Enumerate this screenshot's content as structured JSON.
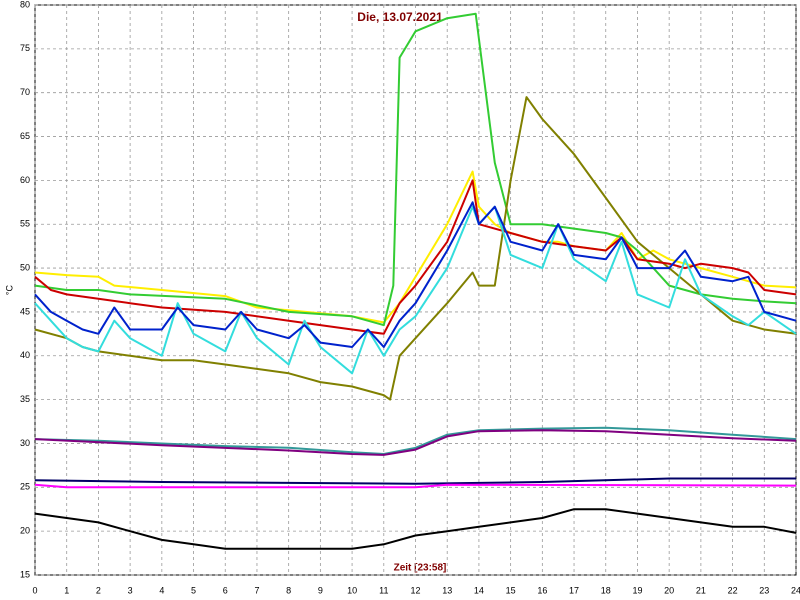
{
  "chart_data": {
    "type": "line",
    "title": "Die, 13.07.2021",
    "x_label": "Zeit [23:58]",
    "y_label": "°C",
    "xlim": [
      0,
      24
    ],
    "xticks": [
      0,
      1,
      2,
      3,
      4,
      5,
      6,
      7,
      8,
      9,
      10,
      11,
      12,
      13,
      14,
      15,
      16,
      17,
      18,
      19,
      20,
      21,
      22,
      23,
      24
    ],
    "ylim": [
      15,
      80
    ],
    "yticks": [
      15,
      20,
      25,
      30,
      35,
      40,
      45,
      50,
      55,
      60,
      65,
      70,
      75,
      80
    ],
    "grid": true,
    "series": [
      {
        "color": "#ffee00",
        "x": [
          0,
          1,
          2,
          2.5,
          4,
          6,
          7,
          8,
          10,
          11,
          11.5,
          12,
          13,
          13.8,
          14,
          14.5,
          15,
          16,
          16.5,
          17,
          18,
          18.5,
          19,
          19.5,
          20,
          21,
          22,
          23,
          24
        ],
        "values": [
          49.5,
          49.2,
          49,
          48,
          47.5,
          46.8,
          45.5,
          45.2,
          44.5,
          43.8,
          46,
          49,
          55,
          61,
          57,
          55,
          54,
          53,
          53,
          52.5,
          52,
          54,
          51,
          52,
          51,
          50,
          49,
          48,
          47.8
        ]
      },
      {
        "color": "#33cc33",
        "x": [
          0,
          1,
          2,
          3,
          6,
          8,
          10,
          11,
          11.3,
          11.5,
          12,
          13,
          13.9,
          14.5,
          15,
          16,
          17,
          18,
          18.5,
          19,
          20,
          21,
          22,
          23,
          24
        ],
        "values": [
          48,
          47.5,
          47.5,
          47,
          46.5,
          45,
          44.5,
          43.5,
          48,
          74,
          77,
          78.5,
          79,
          62,
          55,
          55,
          54.5,
          54,
          53.5,
          52,
          48,
          47,
          46.5,
          46.2,
          46
        ]
      },
      {
        "color": "#808000",
        "x": [
          0,
          1,
          1.5,
          2,
          3,
          4,
          5,
          6,
          7,
          8,
          9,
          10,
          11,
          11.2,
          11.5,
          12,
          13,
          13.8,
          14,
          14.5,
          15,
          15.5,
          16,
          17,
          18,
          19,
          20,
          21,
          22,
          23,
          24
        ],
        "values": [
          43,
          42,
          41,
          40.5,
          40,
          39.5,
          39.5,
          39,
          38.5,
          38,
          37,
          36.5,
          35.5,
          35,
          40,
          42,
          46,
          49.5,
          48,
          48,
          60,
          69.5,
          67,
          63,
          58,
          53,
          50,
          47,
          44,
          43,
          42.5
        ]
      },
      {
        "color": "#cc0000",
        "x": [
          0,
          0.5,
          1,
          2,
          3,
          4,
          6,
          8,
          10,
          11,
          11.5,
          12,
          13,
          13.8,
          14,
          15,
          16,
          17,
          18,
          18.5,
          19,
          20,
          20.5,
          21,
          22,
          22.5,
          23,
          24
        ],
        "values": [
          49,
          47.5,
          47,
          46.5,
          46,
          45.5,
          45,
          44,
          43,
          42.5,
          46,
          48,
          53,
          60,
          55,
          54,
          53,
          52.5,
          52,
          53.5,
          51,
          50.5,
          50,
          50.5,
          50,
          49.5,
          47.5,
          47
        ]
      },
      {
        "color": "#33dddd",
        "x": [
          0,
          1,
          1.5,
          2,
          2.5,
          3,
          4,
          4.5,
          5,
          6,
          6.5,
          7,
          8,
          8.5,
          9,
          10,
          10.5,
          11,
          11.5,
          12,
          13,
          13.8,
          14,
          14.5,
          15,
          16,
          16.5,
          17,
          18,
          18.5,
          19,
          20,
          20.5,
          21,
          22,
          22.5,
          23,
          24
        ],
        "values": [
          46,
          42,
          41,
          40.5,
          44,
          42,
          40,
          46,
          42.5,
          40.5,
          45,
          42,
          39,
          44,
          41,
          38,
          43,
          40,
          43,
          44.5,
          50,
          57,
          55,
          57,
          51.5,
          50,
          55,
          51,
          48.5,
          53,
          47,
          45.5,
          51,
          47,
          44.5,
          43.5,
          45,
          42.5
        ]
      },
      {
        "color": "#0022cc",
        "x": [
          0,
          0.5,
          1,
          1.5,
          2,
          2.5,
          3,
          4,
          4.5,
          5,
          6,
          6.5,
          7,
          8,
          8.5,
          9,
          10,
          10.5,
          11,
          11.5,
          12,
          13,
          13.8,
          14,
          14.5,
          15,
          16,
          16.5,
          17,
          18,
          18.5,
          19,
          20,
          20.5,
          21,
          22,
          22.5,
          23,
          24
        ],
        "values": [
          47,
          45,
          44,
          43,
          42.5,
          45.5,
          43,
          43,
          45.5,
          43.5,
          43,
          45,
          43,
          42,
          43.5,
          41.5,
          41,
          43,
          41,
          44,
          46,
          52,
          57.5,
          55,
          57,
          53,
          52,
          55,
          51.5,
          51,
          53.5,
          50,
          50,
          52,
          49,
          48.5,
          49,
          45,
          44
        ]
      },
      {
        "color": "#339999",
        "x": [
          0,
          2,
          4,
          6,
          8,
          10,
          11,
          12,
          13,
          14,
          16,
          18,
          20,
          22,
          24
        ],
        "values": [
          30.5,
          30.3,
          30,
          29.7,
          29.5,
          29,
          28.8,
          29.5,
          31,
          31.5,
          31.7,
          31.8,
          31.5,
          31,
          30.5
        ]
      },
      {
        "color": "#800080",
        "x": [
          0,
          4,
          8,
          10,
          11,
          12,
          13,
          14,
          16,
          18,
          20,
          22,
          24
        ],
        "values": [
          30.5,
          29.8,
          29.2,
          28.8,
          28.7,
          29.3,
          30.8,
          31.4,
          31.5,
          31.4,
          31,
          30.6,
          30.3
        ]
      },
      {
        "color": "#000066",
        "x": [
          0,
          4,
          8,
          12,
          16,
          20,
          24
        ],
        "values": [
          25.8,
          25.6,
          25.5,
          25.4,
          25.6,
          26,
          26
        ]
      },
      {
        "color": "#ff00ff",
        "x": [
          0,
          1,
          12,
          13,
          24
        ],
        "values": [
          25.3,
          25,
          25,
          25.3,
          25.2
        ]
      },
      {
        "color": "#000000",
        "x": [
          0,
          1,
          2,
          3,
          4,
          5,
          6,
          8,
          10,
          11,
          12,
          13,
          14,
          15,
          16,
          17,
          18,
          19,
          20,
          21,
          22,
          23,
          24
        ],
        "values": [
          22,
          21.5,
          21,
          20,
          19,
          18.5,
          18,
          18,
          18,
          18.5,
          19.5,
          20,
          20.5,
          21,
          21.5,
          22.5,
          22.5,
          22,
          21.5,
          21,
          20.5,
          20.5,
          19.8
        ]
      }
    ]
  }
}
